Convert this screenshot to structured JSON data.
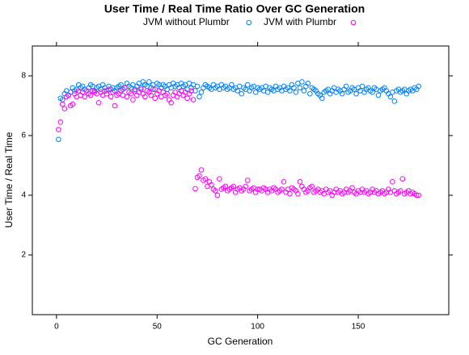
{
  "chart_data": {
    "type": "scatter",
    "title": "User Time / Real Time Ratio Over GC Generation",
    "x_label": "GC Generation",
    "y_label": "User Time / Real Time",
    "legend": "top",
    "xlim": [
      -12,
      195
    ],
    "ylim": [
      0,
      9
    ],
    "xticks": [
      0,
      50,
      100,
      150
    ],
    "yticks": [
      2,
      4,
      6,
      8
    ],
    "grid": false,
    "x": [
      1,
      2,
      3,
      4,
      5,
      6,
      7,
      8,
      9,
      10,
      11,
      12,
      13,
      14,
      15,
      16,
      17,
      18,
      19,
      20,
      21,
      22,
      23,
      24,
      25,
      26,
      27,
      28,
      29,
      30,
      31,
      32,
      33,
      34,
      35,
      36,
      37,
      38,
      39,
      40,
      41,
      42,
      43,
      44,
      45,
      46,
      47,
      48,
      49,
      50,
      51,
      52,
      53,
      54,
      55,
      56,
      57,
      58,
      59,
      60,
      61,
      62,
      63,
      64,
      65,
      66,
      67,
      68,
      69,
      70,
      71,
      72,
      73,
      74,
      75,
      76,
      77,
      78,
      79,
      80,
      81,
      82,
      83,
      84,
      85,
      86,
      87,
      88,
      89,
      90,
      91,
      92,
      93,
      94,
      95,
      96,
      97,
      98,
      99,
      100,
      101,
      102,
      103,
      104,
      105,
      106,
      107,
      108,
      109,
      110,
      111,
      112,
      113,
      114,
      115,
      116,
      117,
      118,
      119,
      120,
      121,
      122,
      123,
      124,
      125,
      126,
      127,
      128,
      129,
      130,
      131,
      132,
      133,
      134,
      135,
      136,
      137,
      138,
      139,
      140,
      141,
      142,
      143,
      144,
      145,
      146,
      147,
      148,
      149,
      150,
      151,
      152,
      153,
      154,
      155,
      156,
      157,
      158,
      159,
      160,
      161,
      162,
      163,
      164,
      165,
      166,
      167,
      168,
      169,
      170,
      171,
      172,
      173,
      174,
      175,
      176,
      177,
      178,
      179,
      180
    ],
    "series": [
      {
        "name": "JVM without Plumbr",
        "color": "#0080ff",
        "values": [
          5.87,
          7.25,
          7.2,
          7.4,
          7.5,
          7.35,
          7.45,
          7.6,
          7.5,
          7.55,
          7.7,
          7.6,
          7.65,
          7.55,
          7.5,
          7.6,
          7.7,
          7.65,
          7.5,
          7.6,
          7.65,
          7.55,
          7.7,
          7.6,
          7.5,
          7.65,
          7.55,
          7.6,
          7.5,
          7.6,
          7.65,
          7.7,
          7.55,
          7.6,
          7.75,
          7.65,
          7.6,
          7.7,
          7.55,
          7.65,
          7.75,
          7.6,
          7.8,
          7.7,
          7.65,
          7.8,
          7.6,
          7.7,
          7.55,
          7.75,
          7.7,
          7.6,
          7.7,
          7.65,
          7.55,
          7.7,
          7.6,
          7.75,
          7.65,
          7.7,
          7.6,
          7.75,
          7.65,
          7.7,
          7.55,
          7.75,
          7.6,
          7.7,
          7.5,
          7.65,
          7.3,
          7.45,
          7.6,
          7.7,
          7.65,
          7.6,
          7.55,
          7.7,
          7.6,
          7.65,
          7.55,
          7.7,
          7.6,
          7.65,
          7.55,
          7.6,
          7.7,
          7.55,
          7.6,
          7.5,
          7.65,
          7.4,
          7.6,
          7.55,
          7.7,
          7.5,
          7.6,
          7.65,
          7.45,
          7.6,
          7.55,
          7.6,
          7.5,
          7.65,
          7.45,
          7.6,
          7.55,
          7.5,
          7.65,
          7.55,
          7.6,
          7.5,
          7.65,
          7.55,
          7.6,
          7.5,
          7.7,
          7.6,
          7.45,
          7.75,
          7.6,
          7.8,
          7.5,
          7.65,
          7.75,
          7.4,
          7.6,
          7.55,
          7.5,
          7.4,
          7.35,
          7.25,
          7.45,
          7.5,
          7.55,
          7.4,
          7.5,
          7.6,
          7.45,
          7.55,
          7.5,
          7.4,
          7.55,
          7.65,
          7.45,
          7.5,
          7.6,
          7.55,
          7.4,
          7.6,
          7.5,
          7.65,
          7.45,
          7.55,
          7.6,
          7.5,
          7.45,
          7.6,
          7.55,
          7.35,
          7.5,
          7.55,
          7.6,
          7.5,
          7.4,
          7.3,
          7.45,
          7.15,
          7.5,
          7.55,
          7.45,
          7.5,
          7.55,
          7.4,
          7.5,
          7.55,
          7.5,
          7.6,
          7.55,
          7.65
        ]
      },
      {
        "name": "JVM with Plumbr",
        "color": "#ff00ff",
        "values": [
          6.2,
          6.45,
          7.05,
          6.9,
          7.3,
          7.35,
          7.0,
          7.05,
          7.4,
          7.3,
          7.5,
          7.35,
          7.45,
          7.3,
          7.5,
          7.4,
          7.35,
          7.5,
          7.45,
          7.4,
          7.1,
          7.45,
          7.35,
          7.5,
          7.4,
          7.55,
          7.3,
          7.45,
          7.0,
          7.35,
          7.4,
          7.5,
          7.35,
          7.6,
          7.3,
          7.45,
          7.4,
          7.2,
          7.5,
          7.35,
          7.45,
          7.55,
          7.4,
          7.3,
          7.5,
          7.45,
          7.35,
          7.55,
          7.25,
          7.4,
          7.5,
          7.3,
          7.45,
          7.35,
          7.4,
          7.2,
          7.1,
          7.35,
          7.45,
          7.3,
          7.4,
          7.5,
          7.35,
          7.45,
          7.25,
          7.4,
          7.5,
          7.2,
          4.22,
          4.6,
          4.65,
          4.85,
          4.5,
          4.55,
          4.3,
          4.45,
          4.35,
          4.2,
          4.15,
          4.0,
          4.55,
          4.2,
          4.25,
          4.3,
          4.15,
          4.2,
          4.25,
          4.3,
          4.1,
          4.2,
          4.25,
          4.15,
          4.2,
          4.3,
          4.5,
          4.15,
          4.2,
          4.25,
          4.1,
          4.2,
          4.2,
          4.15,
          4.25,
          4.2,
          4.1,
          4.2,
          4.15,
          4.25,
          4.2,
          4.1,
          4.15,
          4.2,
          4.45,
          4.1,
          4.2,
          4.05,
          4.25,
          4.2,
          4.15,
          4.05,
          4.45,
          4.3,
          4.2,
          4.1,
          4.15,
          4.25,
          4.3,
          4.1,
          4.15,
          4.2,
          4.1,
          4.15,
          4.05,
          4.2,
          4.1,
          4.15,
          4.0,
          4.1,
          4.2,
          4.1,
          4.15,
          4.05,
          4.1,
          4.2,
          4.1,
          4.15,
          4.25,
          4.1,
          4.05,
          4.15,
          4.1,
          4.2,
          4.1,
          4.15,
          4.05,
          4.1,
          4.2,
          4.1,
          4.15,
          4.05,
          4.1,
          4.15,
          4.05,
          4.1,
          4.2,
          4.1,
          4.45,
          4.15,
          4.05,
          4.1,
          4.15,
          4.55,
          4.05,
          4.1,
          4.15,
          4.05,
          4.1,
          4.05,
          4.0,
          4.0
        ]
      }
    ]
  }
}
